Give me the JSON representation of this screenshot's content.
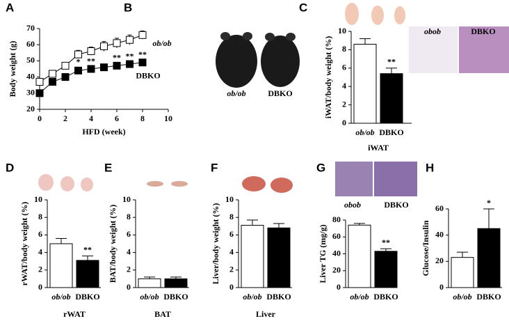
{
  "chart_data": [
    {
      "panel": "A",
      "type": "line",
      "xlabel": "HFD (week)",
      "ylabel": "Body weight (g)",
      "x": [
        0,
        1,
        2,
        3,
        4,
        5,
        6,
        7,
        8
      ],
      "xlim": [
        0,
        10
      ],
      "xticks": [
        0,
        2,
        4,
        6,
        8,
        10
      ],
      "ylim": [
        20,
        70
      ],
      "yticks": [
        20,
        30,
        40,
        50,
        60,
        70
      ],
      "series": [
        {
          "name": "ob/ob",
          "color": "#ffffff",
          "values": [
            37,
            42,
            47,
            54,
            56,
            59,
            61,
            63,
            66
          ],
          "errors": [
            2,
            2,
            2,
            2.5,
            2.5,
            3,
            3,
            3,
            2.5
          ]
        },
        {
          "name": "DBKO",
          "color": "#000000",
          "values": [
            30,
            37,
            40,
            44,
            45,
            46,
            47,
            48,
            49
          ],
          "errors": [
            2,
            2,
            2,
            2,
            1.5,
            1.5,
            1.5,
            1.5,
            1.5
          ],
          "annotations": [
            null,
            null,
            null,
            "*",
            "**",
            null,
            "**",
            "**",
            "**"
          ]
        }
      ]
    },
    {
      "panel": "B",
      "type": "image",
      "labels": [
        "ob/ob",
        "DBKO"
      ]
    },
    {
      "panel": "C",
      "type": "bar",
      "ylabel": "iWAT/body weight (%)",
      "xlabel": "iWAT",
      "categories": [
        "ob/ob",
        "DBKO"
      ],
      "values": [
        8.6,
        5.4
      ],
      "errors": [
        0.6,
        0.6
      ],
      "colors": [
        "#ffffff",
        "#000000"
      ],
      "annotations": [
        null,
        "**"
      ],
      "ylim": [
        0,
        10
      ],
      "yticks": [
        0,
        2,
        4,
        6,
        8,
        10
      ],
      "image_labels": [
        "obob",
        "DBKO"
      ]
    },
    {
      "panel": "D",
      "type": "bar",
      "ylabel": "rWAT/body weight (%)",
      "xlabel": "rWAT",
      "categories": [
        "ob/ob",
        "DBKO"
      ],
      "values": [
        5.0,
        3.1
      ],
      "errors": [
        0.6,
        0.5
      ],
      "colors": [
        "#ffffff",
        "#000000"
      ],
      "annotations": [
        null,
        "**"
      ],
      "ylim": [
        0,
        10
      ],
      "yticks": [
        0,
        2,
        4,
        6,
        8,
        10
      ]
    },
    {
      "panel": "E",
      "type": "bar",
      "ylabel": "BAT/body weight (%)",
      "xlabel": "BAT",
      "categories": [
        "ob/ob",
        "DBKO"
      ],
      "values": [
        1.0,
        1.0
      ],
      "errors": [
        0.2,
        0.2
      ],
      "colors": [
        "#ffffff",
        "#000000"
      ],
      "ylim": [
        0,
        10
      ],
      "yticks": [
        0,
        2,
        4,
        6,
        8,
        10
      ]
    },
    {
      "panel": "F",
      "type": "bar",
      "ylabel": "Liver/body weight (%)",
      "xlabel": "Liver",
      "categories": [
        "ob/ob",
        "DBKO"
      ],
      "values": [
        7.1,
        6.8
      ],
      "errors": [
        0.6,
        0.5
      ],
      "colors": [
        "#ffffff",
        "#000000"
      ],
      "ylim": [
        0,
        10
      ],
      "yticks": [
        0,
        2,
        4,
        6,
        8,
        10
      ]
    },
    {
      "panel": "G",
      "type": "bar",
      "ylabel": "Liver TG (mg/g)",
      "categories": [
        "ob/ob",
        "DBKO"
      ],
      "values": [
        74,
        43
      ],
      "errors": [
        2,
        3
      ],
      "colors": [
        "#ffffff",
        "#000000"
      ],
      "annotations": [
        null,
        "**"
      ],
      "ylim": [
        0,
        80
      ],
      "yticks": [
        0,
        20,
        40,
        60,
        80
      ],
      "image_labels": [
        "obob",
        "DBKO"
      ]
    },
    {
      "panel": "H",
      "type": "bar",
      "ylabel": "Glucose/Insulin",
      "categories": [
        "ob/ob",
        "DBKO"
      ],
      "values": [
        23,
        45
      ],
      "errors": [
        4,
        15
      ],
      "colors": [
        "#ffffff",
        "#000000"
      ],
      "annotations": [
        null,
        "*"
      ],
      "ylim": [
        0,
        60
      ],
      "yticks": [
        0,
        20,
        40,
        60
      ]
    }
  ]
}
